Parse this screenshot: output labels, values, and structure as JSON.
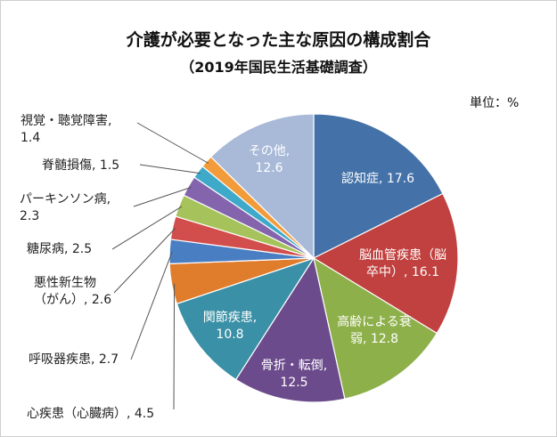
{
  "chart_data": {
    "type": "pie",
    "title": "介護が必要となった主な原因の構成割合",
    "subtitle": "（2019年国民生活基礎調査）",
    "unit_label": "単位：%",
    "slices": [
      {
        "label": "認知症",
        "value": 17.6,
        "color": "#4472a8",
        "text": "認知症, 17.6"
      },
      {
        "label": "脳血管疾患（脳卒中）",
        "value": 16.1,
        "color": "#c0413f",
        "text_lines": [
          "脳血管疾患（脳",
          "卒中）, 16.1"
        ]
      },
      {
        "label": "高齢による衰弱",
        "value": 12.8,
        "color": "#8eb04a",
        "text_lines": [
          "高齢による衰",
          "弱, 12.8"
        ]
      },
      {
        "label": "骨折・転倒",
        "value": 12.5,
        "color": "#6c4b8c",
        "text_lines": [
          "骨折・転倒,",
          "12.5"
        ]
      },
      {
        "label": "関節疾患",
        "value": 10.8,
        "color": "#3a90a6",
        "text_lines": [
          "関節疾患,",
          "10.8"
        ]
      },
      {
        "label": "心疾患（心臓病）",
        "value": 4.5,
        "color": "#e07d2c",
        "text": "心疾患（心臓病）, 4.5"
      },
      {
        "label": "呼吸器疾患",
        "value": 2.7,
        "color": "#4a7ec2",
        "text": "呼吸器疾患, 2.7"
      },
      {
        "label": "悪性新生物（がん）",
        "value": 2.6,
        "color": "#d24e4c",
        "text_lines": [
          "悪性新生物",
          "（がん）, 2.6"
        ]
      },
      {
        "label": "糖尿病",
        "value": 2.5,
        "color": "#a5c35a",
        "text": "糖尿病, 2.5"
      },
      {
        "label": "パーキンソン病",
        "value": 2.3,
        "color": "#8465ad",
        "text_lines": [
          "パーキンソン病,",
          "2.3"
        ]
      },
      {
        "label": "脊髄損傷",
        "value": 1.5,
        "color": "#3fa9c9",
        "text": "脊髄損傷, 1.5"
      },
      {
        "label": "視覚・聴覚障害",
        "value": 1.4,
        "color": "#f29b3b",
        "text_lines": [
          "視覚・聴覚障害,",
          "1.4"
        ]
      },
      {
        "label": "その他",
        "value": 12.6,
        "color": "#a9b9d8",
        "text_lines": [
          "その他,",
          "12.6"
        ]
      }
    ]
  }
}
